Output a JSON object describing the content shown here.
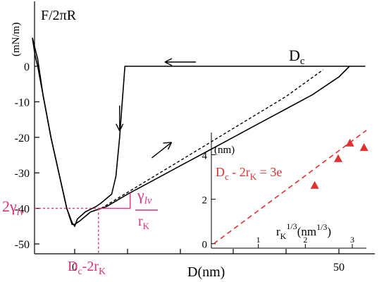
{
  "chart_data": {
    "type": "line",
    "ylabel": "F/2πR",
    "yunit": "(mN/m)",
    "xlabel": "D(nm)",
    "xlim": [
      -8,
      55
    ],
    "ylim": [
      -52,
      8
    ],
    "yticks": [
      0,
      -10,
      -20,
      -30,
      -40,
      -50
    ],
    "xticks": [
      0,
      50
    ],
    "xtick_labels": [
      "0",
      "50"
    ],
    "series": [
      {
        "role": "approach",
        "points": [
          [
            55,
            0
          ],
          [
            9.5,
            0
          ],
          [
            9.0,
            -10
          ],
          [
            8.5,
            -20
          ],
          [
            7.8,
            -31
          ],
          [
            7.0,
            -36
          ],
          [
            5.0,
            -38.5
          ],
          [
            4.0,
            -39.5
          ],
          [
            2.0,
            -41
          ],
          [
            0.5,
            -43
          ],
          [
            0,
            -45
          ],
          [
            -0.5,
            -44
          ],
          [
            -1.5,
            -40
          ],
          [
            -3,
            -30
          ],
          [
            -4.5,
            -20
          ],
          [
            -6,
            -8
          ],
          [
            -7,
            0
          ],
          [
            -7.5,
            3
          ],
          [
            -8,
            8
          ]
        ]
      },
      {
        "role": "retraction",
        "points": [
          [
            -8,
            8
          ],
          [
            -7,
            2
          ],
          [
            -6,
            -8
          ],
          [
            -4.5,
            -20
          ],
          [
            -3,
            -30
          ],
          [
            -1.5,
            -40
          ],
          [
            -0.5,
            -44.5
          ],
          [
            0,
            -44.5
          ],
          [
            1,
            -43.5
          ],
          [
            3,
            -41
          ],
          [
            6,
            -39.5
          ],
          [
            10,
            -36
          ],
          [
            15,
            -32
          ],
          [
            20,
            -28
          ],
          [
            25,
            -24
          ],
          [
            30,
            -20
          ],
          [
            35,
            -16
          ],
          [
            40,
            -12
          ],
          [
            45,
            -8
          ],
          [
            50,
            -3
          ],
          [
            52,
            0
          ]
        ]
      },
      {
        "role": "extrapolation",
        "dashed": true,
        "points": [
          [
            5,
            -40
          ],
          [
            10,
            -35.5
          ],
          [
            20,
            -26.5
          ],
          [
            30,
            -17.5
          ],
          [
            40,
            -8.5
          ],
          [
            47,
            -1
          ]
        ]
      }
    ],
    "arrows": [
      {
        "direction": "left",
        "at": [
          20,
          0
        ]
      },
      {
        "direction": "down",
        "at": [
          8.5,
          -17
        ]
      },
      {
        "direction": "up-right",
        "at": [
          17,
          -23
        ]
      }
    ],
    "annotations": {
      "dc": "D",
      "dc_sub": "c",
      "gamma_left": "2γ",
      "gamma_left_sub": "lv",
      "gamma_slope_num": "γ",
      "gamma_slope_num_sub": "lv",
      "gamma_slope_den": "r",
      "gamma_slope_den_sub": "K",
      "dc_minus": "D",
      "dc_minus_sub": "c",
      "dc_minus_rest": "-2r",
      "dc_minus_rest_sub": "K",
      "minimum_y": -40,
      "minimum_x": 4.5
    },
    "inset": {
      "type": "scatter",
      "ylabel": "(nm)",
      "xlabel": "r",
      "xlabel_sub": "K",
      "xlabel_sup": "1/3",
      "xlabel_unit": "(nm",
      "xlabel_unit_sup": "1/3",
      "xlabel_close": ")",
      "xticks": [
        "1",
        "2",
        "3"
      ],
      "yticks": [
        "0",
        "2",
        "4"
      ],
      "xlim": [
        0,
        3.3
      ],
      "ylim": [
        -0.2,
        5
      ],
      "equation": "D",
      "equation_sub": "c",
      "equation_mid": " - 2r",
      "equation_mid_sub": "K",
      "equation_end": " = 3e",
      "points": [
        [
          2.2,
          2.6
        ],
        [
          2.7,
          3.8
        ],
        [
          2.95,
          4.5
        ],
        [
          3.25,
          4.3
        ]
      ],
      "fit": [
        [
          0.05,
          0
        ],
        [
          3.3,
          5.1
        ]
      ],
      "color": "#e03030"
    },
    "colors": {
      "curve": "#000000",
      "annotation": "#e0307a",
      "inset": "#e03030"
    }
  }
}
